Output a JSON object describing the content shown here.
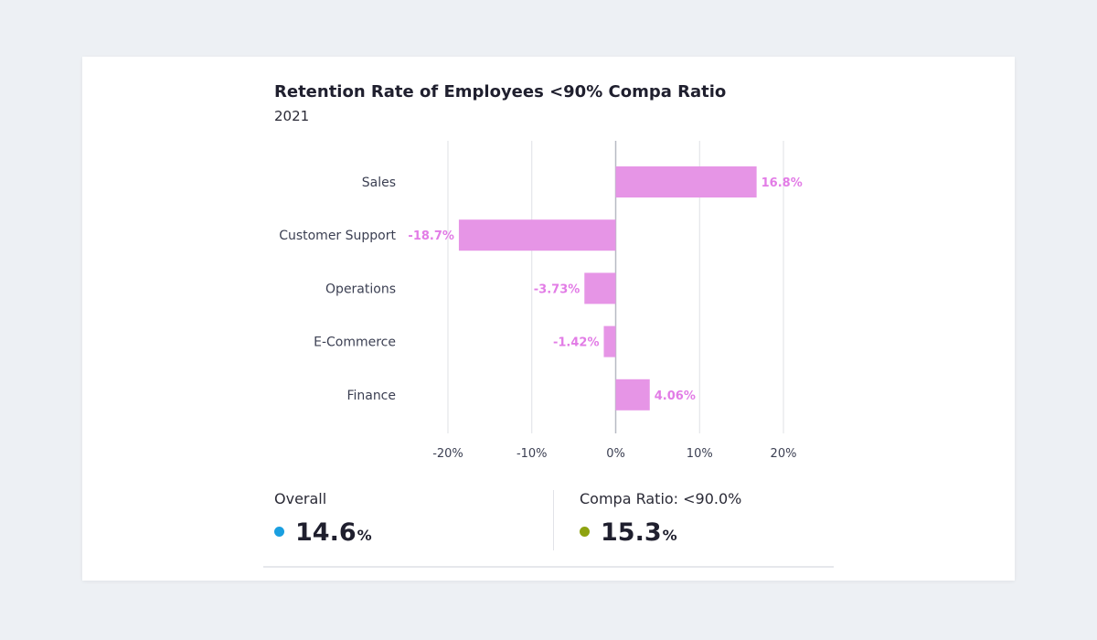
{
  "chart_data": {
    "type": "bar",
    "orientation": "horizontal",
    "title": "Retention Rate of Employees <90% Compa Ratio",
    "subtitle": "2021",
    "categories": [
      "Sales",
      "Customer Support",
      "Operations",
      "E-Commerce",
      "Finance"
    ],
    "values": [
      16.8,
      -18.7,
      -3.73,
      -1.42,
      4.06
    ],
    "value_labels": [
      "16.8%",
      "-18.7%",
      "-3.73%",
      "-1.42%",
      "4.06%"
    ],
    "xlim": [
      -20,
      20
    ],
    "xticks": [
      -20,
      -10,
      0,
      10,
      20
    ],
    "xtick_labels": [
      "-20%",
      "-10%",
      "0%",
      "10%",
      "20%"
    ],
    "grid": true,
    "bar_color": "#e695e6",
    "label_color": "#e27ce6"
  },
  "summary": {
    "overall": {
      "label": "Overall",
      "value": "14.6",
      "unit": "%",
      "dot_color": "#1a9fe0"
    },
    "compa": {
      "label": "Compa Ratio: <90.0%",
      "value": "15.3",
      "unit": "%",
      "dot_color": "#8ea310"
    }
  }
}
